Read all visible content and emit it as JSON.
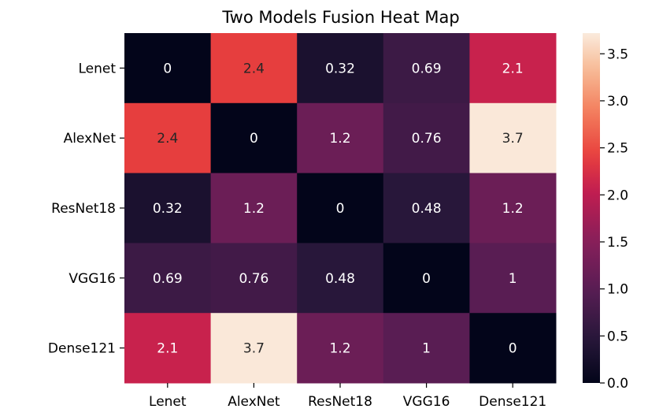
{
  "chart_data": {
    "type": "heatmap",
    "title": "Two Models Fusion Heat Map",
    "xlabel": "",
    "ylabel": "",
    "x_categories": [
      "Lenet",
      "AlexNet",
      "ResNet18",
      "VGG16",
      "Dense121"
    ],
    "y_categories": [
      "Lenet",
      "AlexNet",
      "ResNet18",
      "VGG16",
      "Dense121"
    ],
    "values": [
      [
        0,
        2.4,
        0.32,
        0.69,
        2.1
      ],
      [
        2.4,
        0,
        1.2,
        0.76,
        3.7
      ],
      [
        0.32,
        1.2,
        0,
        0.48,
        1.2
      ],
      [
        0.69,
        0.76,
        0.48,
        0,
        1
      ],
      [
        2.1,
        3.7,
        1.2,
        1,
        0
      ]
    ],
    "cell_labels": [
      [
        "0",
        "2.4",
        "0.32",
        "0.69",
        "2.1"
      ],
      [
        "2.4",
        "0",
        "1.2",
        "0.76",
        "3.7"
      ],
      [
        "0.32",
        "1.2",
        "0",
        "0.48",
        "1.2"
      ],
      [
        "0.69",
        "0.76",
        "0.48",
        "0",
        "1"
      ],
      [
        "2.1",
        "3.7",
        "1.2",
        "1",
        "0"
      ]
    ],
    "colorbar": {
      "range": [
        0,
        3.72
      ],
      "ticks": [
        0,
        0.5,
        1,
        1.5,
        2,
        2.5,
        3,
        3.5
      ],
      "tick_labels": [
        "0.0",
        "0.5",
        "1.0",
        "1.5",
        "2.0",
        "2.5",
        "3.0",
        "3.5"
      ],
      "colormap": "rocket"
    },
    "grid": false,
    "legend": "colorbar-right"
  }
}
